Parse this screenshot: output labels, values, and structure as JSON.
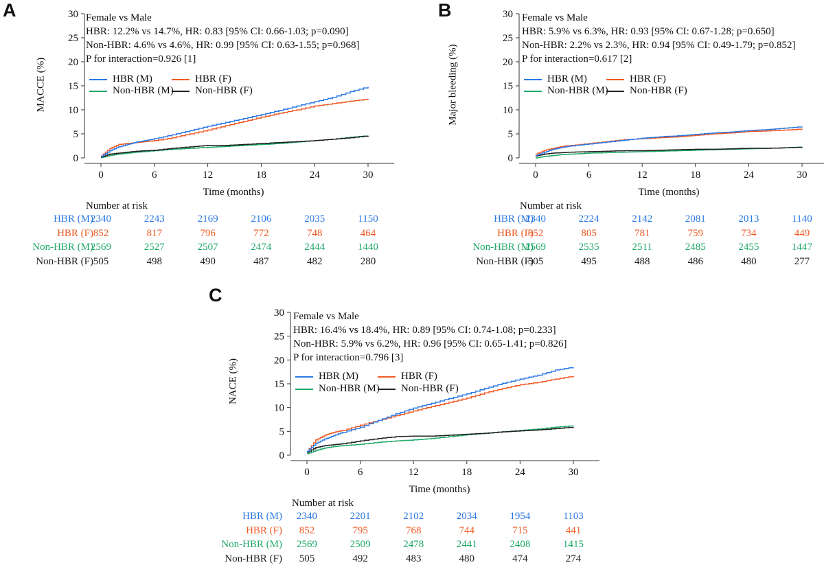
{
  "colors": {
    "hbr_m": "#2b78e4",
    "hbr_f": "#ef5a24",
    "nonhbr_m": "#1fa869",
    "nonhbr_f": "#222222"
  },
  "chart_data": [
    {
      "type": "line",
      "panel": "A",
      "ylabel": "MACCE (%)",
      "xlabel": "Time (months)",
      "xlim": [
        0,
        30
      ],
      "ylim": [
        0,
        30
      ],
      "xticks": [
        "0",
        "6",
        "12",
        "18",
        "24",
        "30"
      ],
      "yticks": [
        "0",
        "5",
        "10",
        "15",
        "20",
        "25",
        "30"
      ],
      "annotation": [
        "Female vs Male",
        "HBR: 12.2% vs 14.7%, HR: 0.83 [95% CI: 0.66-1.03; p=0.090]",
        "Non-HBR: 4.6% vs 4.6%, HR: 0.99 [95% CI: 0.63-1.55; p=0.968]",
        "P for interaction=0.926 [1]"
      ],
      "series": [
        {
          "name": "HBR (M)",
          "key": "hbr_m",
          "x": [
            0,
            1,
            2,
            3,
            4,
            5,
            6,
            8,
            10,
            12,
            14,
            16,
            18,
            20,
            22,
            24,
            26,
            28,
            30
          ],
          "y": [
            0.3,
            1.5,
            2.3,
            2.8,
            3.3,
            3.6,
            4.0,
            4.8,
            5.7,
            6.6,
            7.4,
            8.2,
            9.0,
            9.9,
            10.8,
            11.7,
            12.6,
            13.8,
            14.8
          ]
        },
        {
          "name": "HBR (F)",
          "key": "hbr_f",
          "x": [
            0,
            1,
            2,
            3,
            4,
            5,
            6,
            8,
            10,
            12,
            14,
            16,
            18,
            20,
            22,
            24,
            26,
            28,
            30
          ],
          "y": [
            0.4,
            2.0,
            2.8,
            3.0,
            3.2,
            3.4,
            3.6,
            4.2,
            5.0,
            5.8,
            6.7,
            7.6,
            8.5,
            9.3,
            10.0,
            10.8,
            11.3,
            11.8,
            12.3
          ]
        },
        {
          "name": "Non-HBR (M)",
          "key": "nonhbr_m",
          "x": [
            0,
            1,
            2,
            3,
            4,
            6,
            8,
            10,
            12,
            14,
            16,
            18,
            20,
            22,
            24,
            26,
            28,
            30
          ],
          "y": [
            0.1,
            0.5,
            0.8,
            1.0,
            1.2,
            1.5,
            1.8,
            2.0,
            2.2,
            2.4,
            2.6,
            2.8,
            3.0,
            3.3,
            3.6,
            3.9,
            4.3,
            4.6
          ]
        },
        {
          "name": "Non-HBR (F)",
          "key": "nonhbr_f",
          "x": [
            0,
            1,
            2,
            3,
            4,
            6,
            8,
            10,
            12,
            14,
            16,
            18,
            20,
            22,
            24,
            26,
            28,
            30
          ],
          "y": [
            0.2,
            0.8,
            1.0,
            1.2,
            1.4,
            1.6,
            2.0,
            2.3,
            2.6,
            2.6,
            2.8,
            3.0,
            3.2,
            3.4,
            3.6,
            3.9,
            4.2,
            4.6
          ]
        }
      ],
      "risk": {
        "title": "Number at risk",
        "rows": [
          {
            "label": "HBR (M)",
            "key": "hbr_m",
            "values": [
              "2340",
              "2243",
              "2169",
              "2106",
              "2035",
              "1150"
            ]
          },
          {
            "label": "HBR (F)",
            "key": "hbr_f",
            "values": [
              "852",
              "817",
              "796",
              "772",
              "748",
              "464"
            ]
          },
          {
            "label": "Non-HBR (M)",
            "key": "nonhbr_m",
            "values": [
              "2569",
              "2527",
              "2507",
              "2474",
              "2444",
              "1440"
            ]
          },
          {
            "label": "Non-HBR (F)",
            "key": "nonhbr_f",
            "values": [
              "505",
              "498",
              "490",
              "487",
              "482",
              "280"
            ]
          }
        ]
      }
    },
    {
      "type": "line",
      "panel": "B",
      "ylabel": "Major bleeding (%)",
      "xlabel": "Time (months)",
      "xlim": [
        0,
        30
      ],
      "ylim": [
        0,
        30
      ],
      "xticks": [
        "0",
        "6",
        "12",
        "18",
        "24",
        "30"
      ],
      "yticks": [
        "0",
        "5",
        "10",
        "15",
        "20",
        "25",
        "30"
      ],
      "annotation": [
        "Female vs Male",
        "HBR: 5.9% vs 6.3%, HR: 0.93 [95% CI: 0.67-1.28; p=0.650]",
        "Non-HBR: 2.2% vs 2.3%, HR: 0.94 [95% CI: 0.49-1.79; p=0.852]",
        "P for interaction=0.617 [2]"
      ],
      "series": [
        {
          "name": "HBR (M)",
          "key": "hbr_m",
          "x": [
            0,
            1,
            2,
            3,
            4,
            6,
            8,
            10,
            12,
            14,
            16,
            18,
            20,
            22,
            24,
            26,
            28,
            30
          ],
          "y": [
            0.5,
            1.2,
            1.8,
            2.2,
            2.5,
            2.9,
            3.3,
            3.7,
            4.1,
            4.4,
            4.6,
            4.9,
            5.2,
            5.4,
            5.7,
            5.9,
            6.2,
            6.5
          ]
        },
        {
          "name": "HBR (F)",
          "key": "hbr_f",
          "x": [
            0,
            1,
            2,
            3,
            4,
            6,
            8,
            10,
            12,
            14,
            16,
            18,
            20,
            22,
            24,
            26,
            28,
            30
          ],
          "y": [
            0.8,
            1.6,
            2.0,
            2.4,
            2.6,
            3.0,
            3.4,
            3.8,
            4.0,
            4.2,
            4.4,
            4.7,
            5.0,
            5.2,
            5.5,
            5.6,
            5.8,
            6.0
          ]
        },
        {
          "name": "Non-HBR (M)",
          "key": "nonhbr_m",
          "x": [
            0,
            1,
            2,
            3,
            4,
            6,
            8,
            10,
            12,
            14,
            16,
            18,
            20,
            22,
            24,
            26,
            28,
            30
          ],
          "y": [
            0.0,
            0.3,
            0.5,
            0.7,
            0.8,
            1.0,
            1.1,
            1.2,
            1.3,
            1.4,
            1.5,
            1.6,
            1.7,
            1.8,
            1.9,
            2.0,
            2.1,
            2.3
          ]
        },
        {
          "name": "Non-HBR (F)",
          "key": "nonhbr_f",
          "x": [
            0,
            1,
            2,
            3,
            4,
            6,
            8,
            10,
            12,
            14,
            16,
            18,
            20,
            22,
            24,
            26,
            28,
            30
          ],
          "y": [
            0.4,
            0.8,
            1.0,
            1.1,
            1.2,
            1.3,
            1.4,
            1.5,
            1.5,
            1.6,
            1.7,
            1.8,
            1.8,
            1.9,
            2.0,
            2.0,
            2.1,
            2.2
          ]
        }
      ],
      "risk": {
        "title": "Number at risk",
        "rows": [
          {
            "label": "HBR (M)",
            "key": "hbr_m",
            "values": [
              "2340",
              "2224",
              "2142",
              "2081",
              "2013",
              "1140"
            ]
          },
          {
            "label": "HBR (F)",
            "key": "hbr_f",
            "values": [
              "852",
              "805",
              "781",
              "759",
              "734",
              "449"
            ]
          },
          {
            "label": "Non-HBR (M)",
            "key": "nonhbr_m",
            "values": [
              "2569",
              "2535",
              "2511",
              "2485",
              "2455",
              "1447"
            ]
          },
          {
            "label": "Non-HBR (F)",
            "key": "nonhbr_f",
            "values": [
              "505",
              "495",
              "488",
              "486",
              "480",
              "277"
            ]
          }
        ]
      }
    },
    {
      "type": "line",
      "panel": "C",
      "ylabel": "NACE (%)",
      "xlabel": "Time (months)",
      "xlim": [
        0,
        30
      ],
      "ylim": [
        0,
        30
      ],
      "xticks": [
        "0",
        "6",
        "12",
        "18",
        "24",
        "30"
      ],
      "yticks": [
        "0",
        "5",
        "10",
        "15",
        "20",
        "25",
        "30"
      ],
      "annotation": [
        "Female vs Male",
        "HBR: 16.4% vs 18.4%, HR: 0.89 [95% CI: 0.74-1.08; p=0.233]",
        "Non-HBR: 5.9% vs 6.2%, HR: 0.96 [95% CI: 0.65-1.41; p=0.826]",
        "P for interaction=0.796 [3]"
      ],
      "series": [
        {
          "name": "HBR (M)",
          "key": "hbr_m",
          "x": [
            0,
            1,
            2,
            3,
            4,
            6,
            8,
            10,
            12,
            14,
            16,
            18,
            20,
            22,
            24,
            26,
            28,
            30
          ],
          "y": [
            0.8,
            2.5,
            3.4,
            4.1,
            4.8,
            5.9,
            7.3,
            8.7,
            9.9,
            10.9,
            11.9,
            12.9,
            14.0,
            15.1,
            16.0,
            16.8,
            17.9,
            18.5
          ]
        },
        {
          "name": "HBR (F)",
          "key": "hbr_f",
          "x": [
            0,
            1,
            2,
            3,
            4,
            6,
            8,
            10,
            12,
            14,
            16,
            18,
            20,
            22,
            24,
            26,
            28,
            30
          ],
          "y": [
            0.8,
            3.2,
            4.2,
            4.8,
            5.2,
            6.3,
            7.3,
            8.3,
            9.3,
            10.2,
            11.1,
            12.0,
            13.1,
            14.0,
            14.8,
            15.3,
            16.0,
            16.6
          ]
        },
        {
          "name": "Non-HBR (M)",
          "key": "nonhbr_m",
          "x": [
            0,
            1,
            2,
            3,
            4,
            6,
            8,
            10,
            12,
            14,
            16,
            18,
            20,
            22,
            24,
            26,
            28,
            30
          ],
          "y": [
            0.3,
            1.0,
            1.5,
            1.8,
            2.0,
            2.3,
            2.7,
            3.0,
            3.2,
            3.5,
            3.9,
            4.3,
            4.6,
            4.9,
            5.2,
            5.5,
            5.9,
            6.2
          ]
        },
        {
          "name": "Non-HBR (F)",
          "key": "nonhbr_f",
          "x": [
            0,
            1,
            2,
            3,
            4,
            6,
            8,
            10,
            12,
            14,
            16,
            18,
            20,
            22,
            24,
            26,
            28,
            30
          ],
          "y": [
            0.6,
            1.6,
            2.0,
            2.2,
            2.4,
            3.0,
            3.5,
            3.9,
            4.0,
            4.0,
            4.2,
            4.4,
            4.6,
            4.9,
            5.1,
            5.3,
            5.6,
            5.9
          ]
        }
      ],
      "risk": {
        "title": "Number at risk",
        "rows": [
          {
            "label": "HBR (M)",
            "key": "hbr_m",
            "values": [
              "2340",
              "2201",
              "2102",
              "2034",
              "1954",
              "1103"
            ]
          },
          {
            "label": "HBR (F)",
            "key": "hbr_f",
            "values": [
              "852",
              "795",
              "768",
              "744",
              "715",
              "441"
            ]
          },
          {
            "label": "Non-HBR (M)",
            "key": "nonhbr_m",
            "values": [
              "2569",
              "2509",
              "2478",
              "2441",
              "2408",
              "1415"
            ]
          },
          {
            "label": "Non-HBR (F)",
            "key": "nonhbr_f",
            "values": [
              "505",
              "492",
              "483",
              "480",
              "474",
              "274"
            ]
          }
        ]
      }
    }
  ]
}
